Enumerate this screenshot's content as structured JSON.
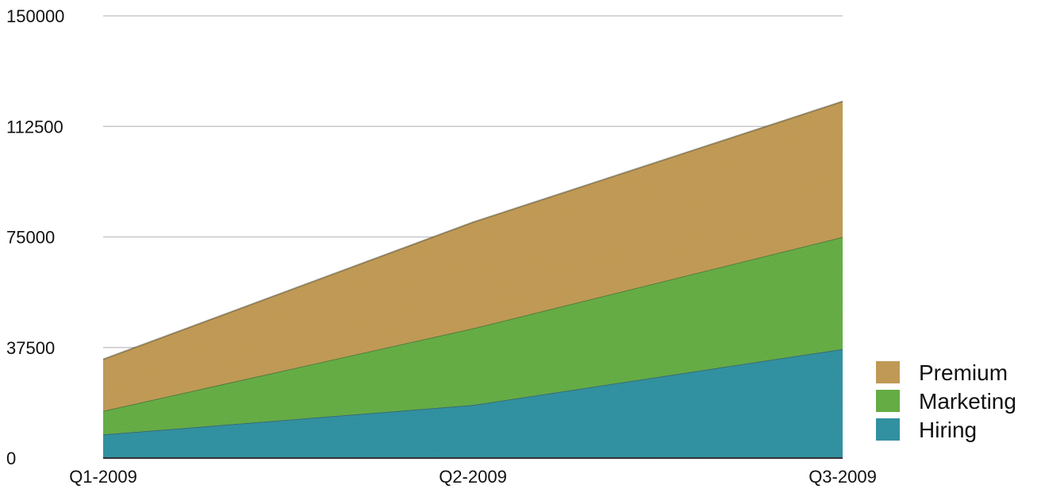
{
  "chart_data": {
    "type": "area",
    "stacked": true,
    "categories": [
      "Q1-2009",
      "Q2-2009",
      "Q3-2009"
    ],
    "series": [
      {
        "name": "Hiring",
        "values": [
          8000,
          18000,
          37000
        ],
        "color": "#3697a8"
      },
      {
        "name": "Marketing",
        "values": [
          8000,
          26000,
          38000
        ],
        "color": "#6ab44a"
      },
      {
        "name": "Premium",
        "values": [
          17500,
          36000,
          46000
        ],
        "color": "#c8a05a"
      }
    ],
    "yticks": [
      "0",
      "37500",
      "75000",
      "112500",
      "150000"
    ],
    "ylim": [
      0,
      150000
    ],
    "legend_position": "right",
    "grid": true
  }
}
